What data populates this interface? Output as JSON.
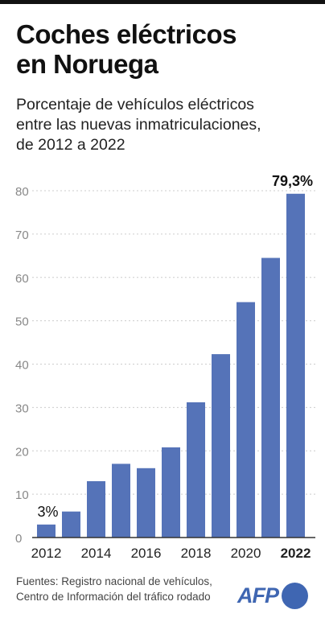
{
  "header": {
    "title_line1": "Coches eléctricos",
    "title_line2": "en Noruega",
    "subtitle_line1": "Porcentaje de vehículos eléctricos",
    "subtitle_line2": "entre las nuevas inmatriculaciones,",
    "subtitle_line3": "de 2012 a 2022"
  },
  "footer": {
    "source_line1": "Fuentes: Registro nacional de vehículos,",
    "source_line2": "Centro de Información del tráfico rodado",
    "logo_text": "AFP"
  },
  "colors": {
    "bar": "#5573b8",
    "grid": "#cccccc",
    "axis_text": "#888888",
    "label_text": "#222222",
    "logo": "#3f66b2"
  },
  "chart_data": {
    "type": "bar",
    "title": "",
    "xlabel": "",
    "ylabel": "",
    "categories": [
      "2012",
      "2013",
      "2014",
      "2015",
      "2016",
      "2017",
      "2018",
      "2019",
      "2020",
      "2021",
      "2022"
    ],
    "values": [
      3.0,
      6.0,
      13.0,
      17.0,
      16.0,
      20.8,
      31.2,
      42.3,
      54.3,
      64.5,
      79.3
    ],
    "ylim": [
      0,
      80
    ],
    "yticks": [
      0,
      10,
      20,
      30,
      40,
      50,
      60,
      70,
      80
    ],
    "xtick_labels": [
      {
        "index": 0,
        "text": "2012",
        "bold": false
      },
      {
        "index": 2,
        "text": "2014",
        "bold": false
      },
      {
        "index": 4,
        "text": "2016",
        "bold": false
      },
      {
        "index": 6,
        "text": "2018",
        "bold": false
      },
      {
        "index": 8,
        "text": "2020",
        "bold": false
      },
      {
        "index": 10,
        "text": "2022",
        "bold": true
      }
    ],
    "data_labels": [
      {
        "index": 0,
        "text": "3%"
      },
      {
        "index": 10,
        "text": "79,3%"
      }
    ],
    "grid": true,
    "legend": "none"
  }
}
